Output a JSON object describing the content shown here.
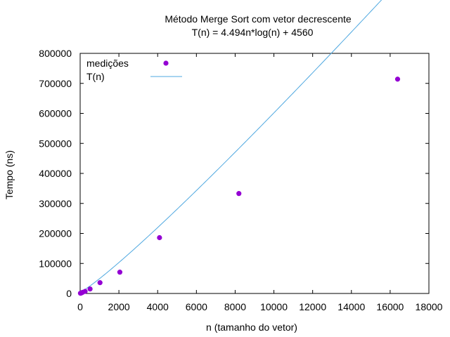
{
  "chart_data": {
    "type": "scatter",
    "title": "Método Merge Sort com vetor decrescente",
    "subtitle": "T(n) = 4.494n*log(n) + 4560",
    "xlabel": "n (tamanho do vetor)",
    "ylabel": "Tempo (ns)",
    "xlim": [
      0,
      18000
    ],
    "ylim": [
      0,
      800000
    ],
    "xticks": [
      0,
      2000,
      4000,
      6000,
      8000,
      10000,
      12000,
      14000,
      16000,
      18000
    ],
    "yticks": [
      0,
      100000,
      200000,
      300000,
      400000,
      500000,
      600000,
      700000,
      800000
    ],
    "grid": false,
    "legend_position": "top-left",
    "series": [
      {
        "name": "medições",
        "kind": "points",
        "color": "#9400d3",
        "x": [
          16,
          32,
          64,
          128,
          256,
          512,
          1024,
          2048,
          4096,
          8192,
          16384
        ],
        "y": [
          700,
          1100,
          2000,
          3800,
          7000,
          15000,
          36000,
          71000,
          186000,
          333000,
          714000
        ]
      },
      {
        "name": "T(n)",
        "kind": "line",
        "color": "#4fa8e0",
        "formula": "4.494*n*log2(n) + 4560",
        "x_range": [
          0,
          16384
        ]
      }
    ]
  }
}
